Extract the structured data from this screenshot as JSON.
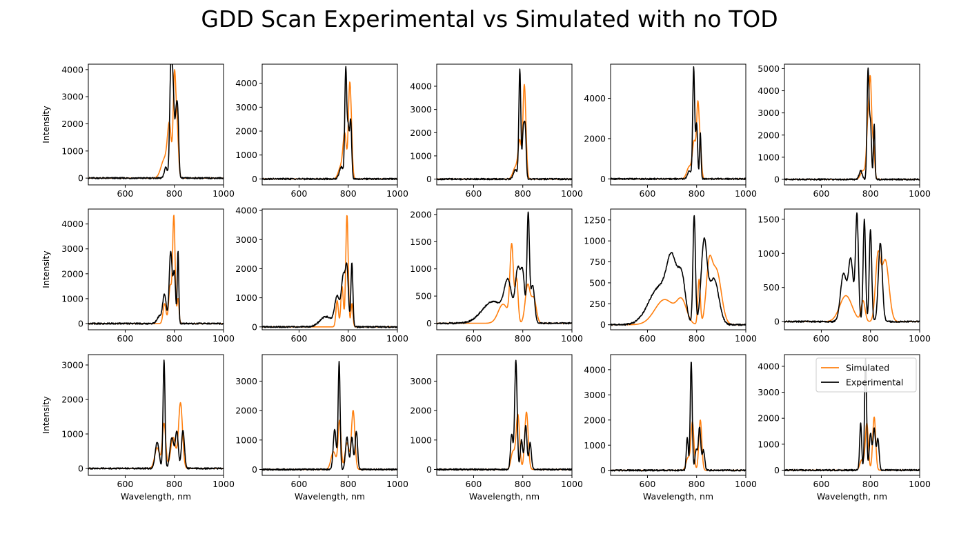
{
  "figure": {
    "title": "GDD Scan Experimental vs Simulated with no TOD"
  },
  "colors": {
    "simulated": "#ff7f0e",
    "experimental": "#000000"
  },
  "legend": {
    "placement": "top-right of last panel",
    "entries": [
      "Simulated",
      "Experimental"
    ]
  },
  "chart_data": [
    {
      "type": "line",
      "row": 0,
      "col": 0,
      "xlim": [
        450,
        1000
      ],
      "ylim": [
        -250,
        4200
      ],
      "yticks": [
        0,
        1000,
        2000,
        3000,
        4000
      ],
      "xticks": [
        600,
        800,
        1000
      ],
      "ylabel": "Intensity",
      "xlabel": "",
      "series": [
        {
          "name": "Simulated",
          "peaks": [
            [
              760,
              700,
              14
            ],
            [
              780,
              1800,
              8
            ],
            [
              800,
              3350,
              5
            ],
            [
              810,
              2000,
              6
            ]
          ]
        },
        {
          "name": "Experimental",
          "peaks": [
            [
              765,
              400,
              6
            ],
            [
              786,
              3950,
              5
            ],
            [
              795,
              2800,
              5
            ],
            [
              808,
              2300,
              5
            ],
            [
              815,
              1500,
              4
            ]
          ]
        }
      ]
    },
    {
      "type": "line",
      "row": 0,
      "col": 1,
      "xlim": [
        450,
        1000
      ],
      "ylim": [
        -250,
        4800
      ],
      "yticks": [
        0,
        1000,
        2000,
        3000,
        4000
      ],
      "xticks": [
        600,
        800,
        1000
      ],
      "ylabel": "",
      "xlabel": "",
      "series": [
        {
          "name": "Simulated",
          "peaks": [
            [
              770,
              500,
              10
            ],
            [
              786,
              1800,
              7
            ],
            [
              805,
              3250,
              5
            ],
            [
              812,
              1700,
              5
            ]
          ]
        },
        {
          "name": "Experimental",
          "peaks": [
            [
              772,
              500,
              8
            ],
            [
              790,
              4600,
              4
            ],
            [
              800,
              2000,
              4
            ],
            [
              810,
              2450,
              4
            ]
          ]
        }
      ]
    },
    {
      "type": "line",
      "row": 0,
      "col": 2,
      "xlim": [
        450,
        1000
      ],
      "ylim": [
        -250,
        4950
      ],
      "yticks": [
        0,
        1000,
        2000,
        3000,
        4000
      ],
      "xticks": [
        600,
        800,
        1000
      ],
      "ylabel": "",
      "xlabel": "",
      "series": [
        {
          "name": "Simulated",
          "peaks": [
            [
              770,
              500,
              10
            ],
            [
              788,
              1600,
              7
            ],
            [
              805,
              3350,
              5
            ],
            [
              812,
              1500,
              5
            ]
          ]
        },
        {
          "name": "Experimental",
          "peaks": [
            [
              770,
              400,
              8
            ],
            [
              788,
              4700,
              4
            ],
            [
              802,
              2000,
              4
            ],
            [
              810,
              2100,
              4
            ]
          ]
        }
      ]
    },
    {
      "type": "line",
      "row": 0,
      "col": 3,
      "xlim": [
        450,
        1000
      ],
      "ylim": [
        -300,
        5700
      ],
      "yticks": [
        0,
        2000,
        4000
      ],
      "xticks": [
        600,
        800,
        1000
      ],
      "ylabel": "",
      "xlabel": "",
      "series": [
        {
          "name": "Simulated",
          "peaks": [
            [
              770,
              600,
              10
            ],
            [
              790,
              1800,
              7
            ],
            [
              805,
              3500,
              5
            ],
            [
              815,
              1500,
              5
            ]
          ]
        },
        {
          "name": "Experimental",
          "peaks": [
            [
              770,
              400,
              7
            ],
            [
              788,
              5500,
              4
            ],
            [
              800,
              2700,
              4
            ],
            [
              815,
              2300,
              3
            ]
          ]
        }
      ]
    },
    {
      "type": "line",
      "row": 0,
      "col": 4,
      "xlim": [
        450,
        1000
      ],
      "ylim": [
        -250,
        5200
      ],
      "yticks": [
        0,
        1000,
        2000,
        3000,
        4000,
        5000
      ],
      "xticks": [
        600,
        800,
        1000
      ],
      "ylabel": "",
      "xlabel": "",
      "series": [
        {
          "name": "Simulated",
          "peaks": [
            [
              770,
              400,
              10
            ],
            [
              790,
              2500,
              6
            ],
            [
              800,
              3900,
              5
            ],
            [
              812,
              1500,
              5
            ]
          ]
        },
        {
          "name": "Experimental",
          "peaks": [
            [
              760,
              400,
              6
            ],
            [
              790,
              4950,
              4
            ],
            [
              800,
              2500,
              4
            ],
            [
              815,
              2500,
              3
            ]
          ]
        }
      ]
    },
    {
      "type": "line",
      "row": 1,
      "col": 0,
      "xlim": [
        450,
        1000
      ],
      "ylim": [
        -250,
        4600
      ],
      "yticks": [
        0,
        1000,
        2000,
        3000,
        4000
      ],
      "xticks": [
        600,
        800,
        1000
      ],
      "ylabel": "Intensity",
      "xlabel": "",
      "series": [
        {
          "name": "Simulated",
          "peaks": [
            [
              760,
              800,
              6
            ],
            [
              783,
              1500,
              6
            ],
            [
              798,
              4300,
              5
            ],
            [
              815,
              1000,
              4
            ]
          ]
        },
        {
          "name": "Experimental",
          "peaks": [
            [
              740,
              300,
              10
            ],
            [
              760,
              1150,
              7
            ],
            [
              785,
              2900,
              6
            ],
            [
              800,
              2000,
              5
            ],
            [
              815,
              2900,
              3
            ]
          ]
        }
      ]
    },
    {
      "type": "line",
      "row": 1,
      "col": 1,
      "xlim": [
        450,
        1000
      ],
      "ylim": [
        -100,
        4050
      ],
      "yticks": [
        0,
        1000,
        2000,
        3000,
        4000
      ],
      "xticks": [
        600,
        800,
        1000
      ],
      "ylabel": "",
      "xlabel": "",
      "series": [
        {
          "name": "Simulated",
          "peaks": [
            [
              755,
              900,
              5
            ],
            [
              775,
              1400,
              5
            ],
            [
              795,
              3850,
              5
            ],
            [
              815,
              800,
              4
            ]
          ]
        },
        {
          "name": "Experimental",
          "peaks": [
            [
              710,
              350,
              25
            ],
            [
              755,
              1000,
              10
            ],
            [
              780,
              1700,
              8
            ],
            [
              795,
              1850,
              6
            ],
            [
              815,
              2200,
              4
            ]
          ]
        }
      ]
    },
    {
      "type": "line",
      "row": 1,
      "col": 2,
      "xlim": [
        450,
        1000
      ],
      "ylim": [
        -120,
        2100
      ],
      "yticks": [
        0,
        500,
        1000,
        1500,
        2000
      ],
      "xticks": [
        600,
        800,
        1000
      ],
      "ylabel": "",
      "xlabel": "",
      "series": [
        {
          "name": "Simulated",
          "peaks": [
            [
              720,
              350,
              20
            ],
            [
              755,
              1390,
              7
            ],
            [
              775,
              800,
              6
            ],
            [
              820,
              700,
              10
            ],
            [
              845,
              450,
              10
            ]
          ]
        },
        {
          "name": "Experimental",
          "peaks": [
            [
              680,
              400,
              45
            ],
            [
              740,
              650,
              15
            ],
            [
              780,
              950,
              10
            ],
            [
              800,
              850,
              8
            ],
            [
              822,
              1980,
              5
            ],
            [
              840,
              700,
              8
            ]
          ]
        }
      ]
    },
    {
      "type": "line",
      "row": 1,
      "col": 3,
      "xlim": [
        450,
        1000
      ],
      "ylim": [
        -60,
        1380
      ],
      "yticks": [
        0,
        250,
        500,
        750,
        1000,
        1250
      ],
      "xticks": [
        600,
        800,
        1000
      ],
      "ylabel": "",
      "xlabel": "",
      "series": [
        {
          "name": "Simulated",
          "peaks": [
            [
              670,
              300,
              40
            ],
            [
              740,
              250,
              20
            ],
            [
              810,
              540,
              5
            ],
            [
              850,
              580,
              12
            ],
            [
              880,
              650,
              20
            ]
          ]
        },
        {
          "name": "Experimental",
          "peaks": [
            [
              650,
              450,
              45
            ],
            [
              700,
              600,
              20
            ],
            [
              740,
              500,
              15
            ],
            [
              790,
              1300,
              5
            ],
            [
              830,
              950,
              12
            ],
            [
              870,
              550,
              20
            ]
          ]
        }
      ]
    },
    {
      "type": "line",
      "row": 1,
      "col": 4,
      "xlim": [
        450,
        1000
      ],
      "ylim": [
        -120,
        1650
      ],
      "yticks": [
        0,
        500,
        1000,
        1500
      ],
      "xticks": [
        600,
        800,
        1000
      ],
      "ylabel": "",
      "xlabel": "",
      "series": [
        {
          "name": "Simulated",
          "peaks": [
            [
              700,
              380,
              25
            ],
            [
              770,
              300,
              8
            ],
            [
              830,
              900,
              10
            ],
            [
              860,
              900,
              15
            ]
          ]
        },
        {
          "name": "Experimental",
          "peaks": [
            [
              690,
              700,
              12
            ],
            [
              720,
              900,
              10
            ],
            [
              745,
              1550,
              6
            ],
            [
              775,
              1500,
              5
            ],
            [
              800,
              1350,
              5
            ],
            [
              840,
              1150,
              8
            ]
          ]
        }
      ]
    },
    {
      "type": "line",
      "row": 2,
      "col": 0,
      "xlim": [
        450,
        1000
      ],
      "ylim": [
        -200,
        3300
      ],
      "yticks": [
        0,
        1000,
        2000,
        3000
      ],
      "xticks": [
        600,
        800,
        1000
      ],
      "ylabel": "Intensity",
      "xlabel": "Wavelength, nm",
      "series": [
        {
          "name": "Simulated",
          "peaks": [
            [
              730,
              600,
              10
            ],
            [
              758,
              1300,
              7
            ],
            [
              795,
              900,
              10
            ],
            [
              825,
              1900,
              8
            ]
          ]
        },
        {
          "name": "Experimental",
          "peaks": [
            [
              730,
              750,
              8
            ],
            [
              758,
              3150,
              4
            ],
            [
              790,
              900,
              8
            ],
            [
              810,
              1050,
              6
            ],
            [
              835,
              1100,
              6
            ]
          ]
        }
      ]
    },
    {
      "type": "line",
      "row": 2,
      "col": 1,
      "xlim": [
        450,
        1000
      ],
      "ylim": [
        -200,
        3900
      ],
      "yticks": [
        0,
        1000,
        2000,
        3000
      ],
      "xticks": [
        600,
        800,
        1000
      ],
      "ylabel": "",
      "xlabel": "Wavelength, nm",
      "series": [
        {
          "name": "Simulated",
          "peaks": [
            [
              740,
              600,
              10
            ],
            [
              765,
              1650,
              6
            ],
            [
              795,
              900,
              8
            ],
            [
              820,
              2000,
              7
            ]
          ]
        },
        {
          "name": "Experimental",
          "peaks": [
            [
              745,
              1350,
              6
            ],
            [
              763,
              3650,
              4
            ],
            [
              795,
              1100,
              6
            ],
            [
              815,
              1100,
              5
            ],
            [
              833,
              1300,
              5
            ]
          ]
        }
      ]
    },
    {
      "type": "line",
      "row": 2,
      "col": 2,
      "xlim": [
        450,
        1000
      ],
      "ylim": [
        -200,
        3900
      ],
      "yticks": [
        0,
        1000,
        2000,
        3000
      ],
      "xticks": [
        600,
        800,
        1000
      ],
      "ylabel": "",
      "xlabel": "Wavelength, nm",
      "series": [
        {
          "name": "Simulated",
          "peaks": [
            [
              760,
              600,
              8
            ],
            [
              780,
              1850,
              7
            ],
            [
              815,
              1950,
              7
            ]
          ]
        },
        {
          "name": "Experimental",
          "peaks": [
            [
              755,
              1200,
              5
            ],
            [
              772,
              3700,
              5
            ],
            [
              795,
              1000,
              5
            ],
            [
              812,
              1500,
              5
            ],
            [
              830,
              900,
              5
            ]
          ]
        }
      ]
    },
    {
      "type": "line",
      "row": 2,
      "col": 3,
      "xlim": [
        450,
        1000
      ],
      "ylim": [
        -200,
        4600
      ],
      "yticks": [
        0,
        1000,
        2000,
        3000,
        4000
      ],
      "xticks": [
        600,
        800,
        1000
      ],
      "ylabel": "",
      "xlabel": "Wavelength, nm",
      "series": [
        {
          "name": "Simulated",
          "peaks": [
            [
              765,
              500,
              8
            ],
            [
              783,
              1900,
              6
            ],
            [
              815,
              2000,
              6
            ]
          ]
        },
        {
          "name": "Experimental",
          "peaks": [
            [
              762,
              1300,
              4
            ],
            [
              778,
              4350,
              4
            ],
            [
              798,
              800,
              5
            ],
            [
              812,
              1700,
              5
            ],
            [
              828,
              800,
              5
            ]
          ]
        }
      ]
    },
    {
      "type": "line",
      "row": 2,
      "col": 4,
      "xlim": [
        450,
        1000
      ],
      "ylim": [
        -200,
        4450
      ],
      "yticks": [
        0,
        1000,
        2000,
        3000,
        4000
      ],
      "xticks": [
        600,
        800,
        1000
      ],
      "ylabel": "",
      "xlabel": "Wavelength, nm",
      "series": [
        {
          "name": "Simulated",
          "peaks": [
            [
              765,
              400,
              8
            ],
            [
              785,
              1800,
              6
            ],
            [
              815,
              2050,
              6
            ]
          ]
        },
        {
          "name": "Experimental",
          "peaks": [
            [
              760,
              1800,
              4
            ],
            [
              780,
              4300,
              4
            ],
            [
              800,
              1400,
              5
            ],
            [
              815,
              1600,
              5
            ],
            [
              830,
              1200,
              5
            ]
          ]
        }
      ]
    }
  ]
}
